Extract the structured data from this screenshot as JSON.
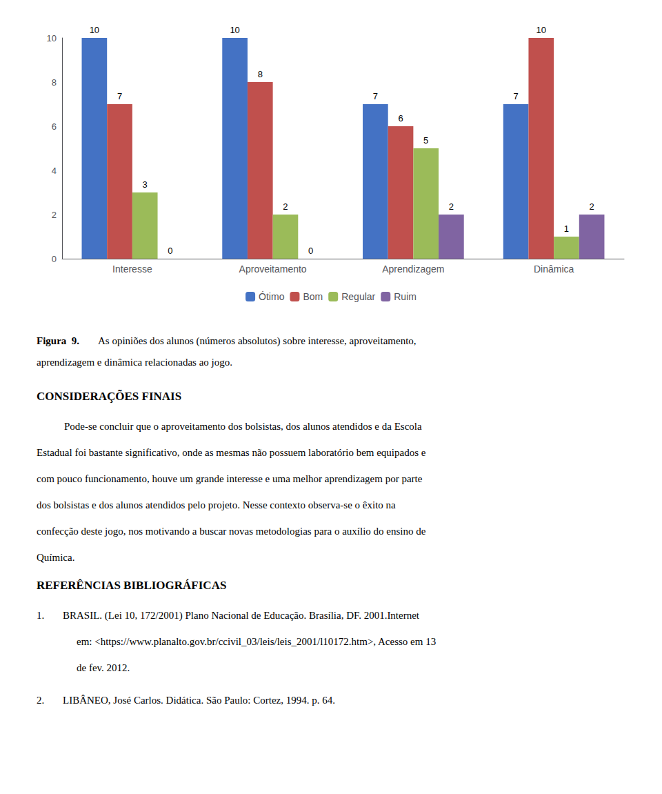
{
  "chart_data": {
    "type": "bar",
    "categories": [
      "Interesse",
      "Aproveitamento",
      "Aprendizagem",
      "Dinâmica"
    ],
    "series": [
      {
        "name": "Ótimo",
        "color": "#4472C4",
        "values": [
          10,
          10,
          7,
          7
        ]
      },
      {
        "name": "Bom",
        "color": "#C0504D",
        "values": [
          7,
          8,
          6,
          10
        ]
      },
      {
        "name": "Regular",
        "color": "#9BBB59",
        "values": [
          3,
          2,
          5,
          1
        ]
      },
      {
        "name": "Ruim",
        "color": "#8064A2",
        "values": [
          0,
          0,
          2,
          2
        ]
      }
    ],
    "ylim": [
      0,
      10
    ],
    "yticks": [
      0,
      2,
      4,
      6,
      8,
      10
    ],
    "grid": false,
    "legend": "bottom",
    "data_labels": true,
    "caption": {
      "label": "Figura  9.",
      "lines": [
        "As opiniões dos alunos (números absolutos) sobre interesse, aproveitamento,",
        "aprendizagem e dinâmica relacionadas ao jogo."
      ]
    },
    "sections": [
      {
        "title": "CONSIDERAÇÕES FINAIS",
        "lines": [
          "Pode-se concluir que o aproveitamento dos bolsistas, dos alunos atendidos e da Escola",
          "Estadual foi bastante significativo, onde as mesmas não possuem laboratório bem equipados e",
          "com pouco funcionamento, houve um grande interesse e uma melhor aprendizagem por parte",
          "dos bolsistas e dos alunos atendidos pelo projeto. Nesse contexto observa-se o êxito na",
          "confecção deste jogo, nos motivando a buscar novas metodologias para o auxílio do ensino de",
          "Química."
        ]
      },
      {
        "title": "REFERÊNCIAS BIBLIOGRÁFICAS",
        "items": [
          {
            "number": "1.",
            "lines": [
              "BRASIL. (Lei 10, 172/2001) Plano Nacional de Educação. Brasília, DF. 2001.Internet",
              "em: <https://www.planalto.gov.br/ccivil_03/leis/leis_2001/l10172.htm>, Acesso em 13",
              "de fev. 2012."
            ]
          },
          {
            "number": "2.",
            "lines": [
              "LIBÂNEO, José Carlos. Didática. São Paulo: Cortez, 1994. p. 64."
            ]
          }
        ]
      }
    ]
  }
}
